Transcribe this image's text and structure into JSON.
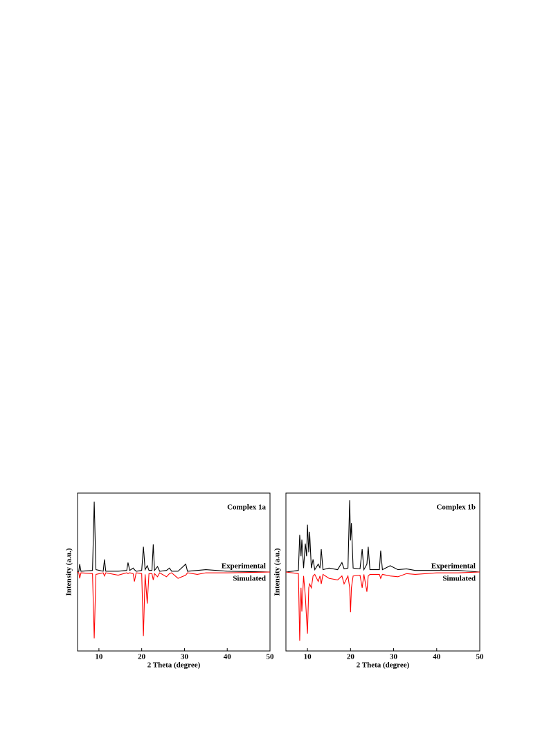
{
  "chart_data": [
    {
      "type": "line",
      "title": "Complex 1a",
      "xlabel": "2 Theta (degree)",
      "ylabel": "Intensity (a.u.)",
      "xlim": [
        5,
        50
      ],
      "xticks": [
        10,
        20,
        30,
        40,
        50
      ],
      "ylim": [
        -100,
        100
      ],
      "x": [
        5,
        5.3,
        5.5,
        5.8,
        8.5,
        8.9,
        9.3,
        11.0,
        11.3,
        11.6,
        14.5,
        16.5,
        16.8,
        17.2,
        18.0,
        18.3,
        18.7,
        20.0,
        20.4,
        20.8,
        21.3,
        21.7,
        22.4,
        22.7,
        23.0,
        23.7,
        24.2,
        25.8,
        26.5,
        27.0,
        28.5,
        30.3,
        30.7,
        33,
        35,
        40,
        50
      ],
      "series": [
        {
          "name": "Experimental",
          "color": "#000000",
          "values": [
            0,
            1,
            10,
            1,
            2,
            89,
            3,
            1,
            16,
            1,
            1,
            2,
            12,
            2,
            5,
            3,
            1,
            2,
            32,
            3,
            8,
            2,
            2,
            35,
            2,
            7,
            1,
            2,
            5,
            1,
            1,
            10,
            1,
            2,
            3,
            1,
            0
          ]
        },
        {
          "name": "Simulated",
          "color": "#ff0000",
          "values": [
            0,
            -1,
            -8,
            -1,
            -2,
            -84,
            -3,
            -1,
            -5,
            -1,
            -4,
            -1,
            -2,
            -1,
            -2,
            -12,
            -1,
            -2,
            -81,
            -3,
            -40,
            -2,
            -2,
            -10,
            -2,
            -6,
            -1,
            -6,
            -2,
            -1,
            -8,
            -4,
            -1,
            -3,
            -1,
            -1,
            0
          ]
        }
      ]
    },
    {
      "type": "line",
      "title": "Complex 1b",
      "xlabel": "2 Theta (degree)",
      "ylabel": "Intensity (a.u.)",
      "xlim": [
        5,
        50
      ],
      "xticks": [
        10,
        20,
        30,
        40,
        50
      ],
      "ylim": [
        -100,
        100
      ],
      "x": [
        5,
        7.9,
        8.2,
        8.5,
        8.7,
        9.1,
        9.5,
        9.8,
        10.0,
        10.3,
        10.5,
        10.9,
        11.3,
        11.7,
        12.5,
        12.9,
        13.2,
        13.6,
        15,
        17,
        18,
        18.5,
        19.4,
        19.8,
        20.0,
        20.2,
        20.6,
        22.2,
        22.7,
        23.1,
        23.8,
        24.1,
        24.5,
        26.7,
        27.0,
        27.4,
        29.2,
        31,
        33,
        35,
        40,
        45,
        50
      ],
      "series": [
        {
          "name": "Experimental",
          "color": "#000000",
          "values": [
            0,
            2,
            47,
            20,
            41,
            5,
            36,
            20,
            60,
            25,
            51,
            5,
            16,
            3,
            10,
            5,
            29,
            3,
            5,
            3,
            12,
            4,
            5,
            91,
            40,
            62,
            5,
            4,
            29,
            3,
            10,
            32,
            3,
            3,
            27,
            3,
            8,
            3,
            4,
            2,
            2,
            2,
            0
          ]
        },
        {
          "name": "Simulated",
          "color": "#ff0000",
          "values": [
            0,
            -2,
            -87,
            -20,
            -50,
            -5,
            -30,
            -60,
            -78,
            -20,
            -15,
            -20,
            -5,
            -3,
            -12,
            -5,
            -15,
            -3,
            -8,
            -10,
            -5,
            -15,
            -5,
            -20,
            -51,
            -20,
            -5,
            -4,
            -20,
            -3,
            -25,
            -5,
            -3,
            -3,
            -8,
            -3,
            -5,
            -6,
            -2,
            -3,
            -1,
            -1,
            0
          ]
        }
      ]
    }
  ]
}
